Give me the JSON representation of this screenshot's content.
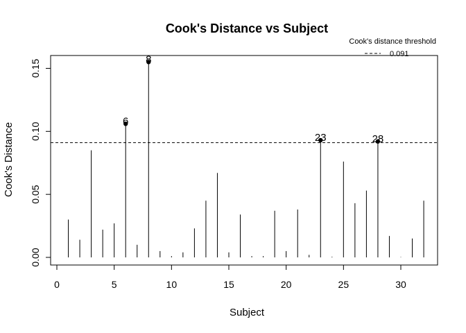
{
  "chart_data": {
    "type": "scatter",
    "title": "Cook's Distance vs Subject",
    "xlabel": "Subject",
    "ylabel": "Cook's Distance",
    "xlim": [
      0,
      33
    ],
    "ylim": [
      0,
      0.16
    ],
    "x_ticks": [
      0,
      5,
      10,
      15,
      20,
      25,
      30
    ],
    "y_ticks": [
      0.0,
      0.05,
      0.1,
      0.15
    ],
    "y_tick_labels": [
      "0.00",
      "0.05",
      "0.10",
      "0.15"
    ],
    "grid": false,
    "legend": {
      "title": "Cook's distance threshold",
      "label": "0.091",
      "placement": "top-right"
    },
    "threshold": 0.091,
    "x": [
      1,
      2,
      3,
      4,
      5,
      6,
      7,
      8,
      9,
      10,
      11,
      12,
      13,
      14,
      15,
      16,
      17,
      18,
      19,
      20,
      21,
      22,
      23,
      24,
      25,
      26,
      27,
      28,
      29,
      30,
      31,
      32
    ],
    "values": [
      0.03,
      0.014,
      0.085,
      0.022,
      0.027,
      0.106,
      0.01,
      0.155,
      0.005,
      0.001,
      0.004,
      0.023,
      0.045,
      0.067,
      0.004,
      0.034,
      0.001,
      0.001,
      0.037,
      0.005,
      0.038,
      0.002,
      0.093,
      0.0005,
      0.076,
      0.043,
      0.053,
      0.092,
      0.017,
      0.0003,
      0.015,
      0.045
    ],
    "highlighted": [
      {
        "x": 6,
        "y": 0.106,
        "label": "6"
      },
      {
        "x": 8,
        "y": 0.155,
        "label": "8"
      },
      {
        "x": 23,
        "y": 0.093,
        "label": "23"
      },
      {
        "x": 28,
        "y": 0.092,
        "label": "28"
      }
    ]
  }
}
